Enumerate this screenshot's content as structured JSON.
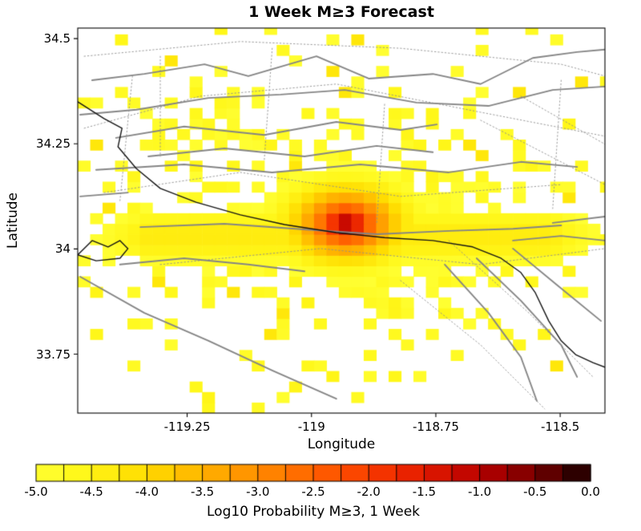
{
  "chart_data": {
    "type": "heatmap",
    "title": "1 Week M≥3 Forecast",
    "xlabel": "Longitude",
    "ylabel": "Latitude",
    "x_range": [
      -119.47,
      -118.41
    ],
    "y_range": [
      33.61,
      34.525
    ],
    "x_ticks": [
      -119.25,
      -119.0,
      -118.75,
      -118.5
    ],
    "x_tick_labels": [
      "-119.25",
      "-119",
      "-118.75",
      "-118.5"
    ],
    "y_ticks": [
      33.75,
      34.0,
      34.25,
      34.5
    ],
    "y_tick_labels": [
      "33.75",
      "34",
      "34.25",
      "34.5"
    ],
    "value_range": [
      -5.0,
      0.0
    ],
    "grid": {
      "cell_deg": 0.025
    },
    "hotspot": {
      "lon": -118.93,
      "lat": 34.06,
      "peak_log10_probability": -0.9
    },
    "colorbar": {
      "label": "Log10 Probability M≥3, 1 Week",
      "ticks": [
        -5.0,
        -4.5,
        -4.0,
        -3.5,
        -3.0,
        -2.5,
        -2.0,
        -1.5,
        -1.0,
        -0.5,
        0.0
      ],
      "tick_labels": [
        "-5.0",
        "-4.5",
        "-4.0",
        "-3.5",
        "-3.0",
        "-2.5",
        "-2.0",
        "-1.5",
        "-1.0",
        "-0.5",
        "0.0"
      ],
      "segments": 20,
      "stops": [
        [
          0.0,
          "#ffff33"
        ],
        [
          0.08,
          "#fff719"
        ],
        [
          0.2,
          "#ffdb00"
        ],
        [
          0.3,
          "#ffb300"
        ],
        [
          0.4,
          "#ff8c00"
        ],
        [
          0.5,
          "#ff6200"
        ],
        [
          0.6,
          "#fa3c00"
        ],
        [
          0.7,
          "#e31a00"
        ],
        [
          0.8,
          "#b80000"
        ],
        [
          0.9,
          "#780000"
        ],
        [
          1.0,
          "#140000"
        ]
      ]
    },
    "field_model": {
      "background_floor": -5.2,
      "core": {
        "lon": -118.93,
        "lat": 34.06,
        "amp1": 3.0,
        "sx1": 0.0125,
        "sy1": 0.0076,
        "amp2": 1.3,
        "sx2": 0.0011,
        "sy2": 0.0008
      },
      "ridge": {
        "lat": 34.03,
        "value": -4.35,
        "half_width_coef": 0.45,
        "width_scale": 0.055,
        "lon_min": -119.33,
        "lon_max": -118.52,
        "edge_falloff": 6
      },
      "scatter": {
        "base": 0.055,
        "amp": 0.62,
        "sx": 0.14,
        "sy": 0.05,
        "blob2": {
          "lon": -119.27,
          "lat": 34.3,
          "amp": 0.45,
          "sx": 0.0128,
          "sy": 0.0072
        },
        "value_min": -5.0,
        "value_spread": 0.45,
        "orange_chance": 0.05,
        "orange_value": -4.25
      },
      "seed": 20250
    },
    "overlays": {
      "fault_color": "#858585",
      "dotted_color": "#8f8f8f",
      "coast_color": "#141414",
      "faults_solid": [
        [
          [
            -119.441,
            34.401
          ],
          [
            -119.336,
            34.416
          ],
          [
            -119.215,
            34.439
          ],
          [
            -119.127,
            34.411
          ],
          [
            -118.99,
            34.458
          ],
          [
            -118.885,
            34.405
          ],
          [
            -118.756,
            34.416
          ],
          [
            -118.66,
            34.392
          ],
          [
            -118.555,
            34.454
          ],
          [
            -118.466,
            34.468
          ],
          [
            -118.41,
            34.474
          ]
        ],
        [
          [
            -119.465,
            34.319
          ],
          [
            -119.352,
            34.331
          ],
          [
            -119.207,
            34.359
          ],
          [
            -119.062,
            34.367
          ],
          [
            -118.933,
            34.378
          ],
          [
            -118.789,
            34.348
          ],
          [
            -118.644,
            34.34
          ],
          [
            -118.515,
            34.378
          ],
          [
            -118.41,
            34.386
          ]
        ],
        [
          [
            -119.393,
            34.264
          ],
          [
            -119.256,
            34.291
          ],
          [
            -119.095,
            34.271
          ],
          [
            -118.95,
            34.302
          ],
          [
            -118.821,
            34.283
          ],
          [
            -118.748,
            34.296
          ]
        ],
        [
          [
            -119.328,
            34.22
          ],
          [
            -119.175,
            34.239
          ],
          [
            -119.014,
            34.22
          ],
          [
            -118.869,
            34.245
          ],
          [
            -118.756,
            34.23
          ]
        ],
        [
          [
            -119.433,
            34.188
          ],
          [
            -119.256,
            34.201
          ],
          [
            -119.079,
            34.182
          ],
          [
            -118.902,
            34.201
          ],
          [
            -118.724,
            34.182
          ],
          [
            -118.579,
            34.207
          ],
          [
            -118.466,
            34.195
          ]
        ],
        [
          [
            -119.344,
            34.052
          ],
          [
            -119.175,
            34.06
          ],
          [
            -118.998,
            34.045
          ],
          [
            -118.869,
            34.035
          ],
          [
            -118.724,
            34.043
          ],
          [
            -118.595,
            34.048
          ],
          [
            -118.498,
            34.056
          ]
        ],
        [
          [
            -119.385,
            33.963
          ],
          [
            -119.256,
            33.978
          ],
          [
            -119.127,
            33.963
          ],
          [
            -119.014,
            33.947
          ]
        ],
        [
          [
            -119.465,
            33.934
          ],
          [
            -119.336,
            33.848
          ],
          [
            -119.207,
            33.782
          ],
          [
            -119.078,
            33.711
          ],
          [
            -118.95,
            33.644
          ]
        ],
        [
          [
            -118.732,
            33.963
          ],
          [
            -118.644,
            33.848
          ],
          [
            -118.579,
            33.743
          ],
          [
            -118.547,
            33.639
          ]
        ],
        [
          [
            -118.668,
            33.978
          ],
          [
            -118.579,
            33.877
          ],
          [
            -118.498,
            33.772
          ],
          [
            -118.466,
            33.696
          ]
        ],
        [
          [
            -118.595,
            34.001
          ],
          [
            -118.507,
            33.915
          ],
          [
            -118.418,
            33.829
          ]
        ],
        [
          [
            -118.595,
            34.02
          ],
          [
            -118.498,
            34.031
          ],
          [
            -118.41,
            34.02
          ]
        ],
        [
          [
            -118.515,
            34.062
          ],
          [
            -118.41,
            34.077
          ]
        ],
        [
          [
            -119.465,
            34.125
          ],
          [
            -119.369,
            34.134
          ]
        ]
      ],
      "faults_dotted": [
        [
          [
            -119.457,
            34.458
          ],
          [
            -119.143,
            34.493
          ],
          [
            -118.821,
            34.477
          ],
          [
            -118.498,
            34.439
          ],
          [
            -118.41,
            34.411
          ]
        ],
        [
          [
            -119.457,
            34.287
          ],
          [
            -119.224,
            34.363
          ],
          [
            -118.95,
            34.392
          ],
          [
            -118.66,
            34.325
          ],
          [
            -118.41,
            34.268
          ]
        ],
        [
          [
            -119.417,
            34.134
          ],
          [
            -119.143,
            34.182
          ],
          [
            -118.821,
            34.125
          ],
          [
            -118.498,
            34.153
          ]
        ],
        [
          [
            -119.304,
            33.963
          ],
          [
            -118.982,
            34.001
          ],
          [
            -118.66,
            33.963
          ],
          [
            -118.41,
            34.001
          ]
        ],
        [
          [
            -118.821,
            33.925
          ],
          [
            -118.66,
            33.772
          ],
          [
            -118.531,
            33.62
          ]
        ],
        [
          [
            -118.724,
            34.02
          ],
          [
            -118.563,
            33.848
          ],
          [
            -118.434,
            33.696
          ]
        ],
        [
          [
            -118.66,
            34.306
          ],
          [
            -118.41,
            34.153
          ]
        ],
        [
          [
            -118.579,
            34.363
          ],
          [
            -118.41,
            34.249
          ]
        ],
        [
          [
            -119.36,
            34.411
          ],
          [
            -119.385,
            34.115
          ]
        ],
        [
          [
            -119.079,
            34.477
          ],
          [
            -119.095,
            34.21
          ]
        ],
        [
          [
            -118.853,
            34.344
          ],
          [
            -118.869,
            34.058
          ]
        ],
        [
          [
            -118.498,
            34.401
          ],
          [
            -118.515,
            34.096
          ]
        ],
        [
          [
            -119.304,
            34.458
          ],
          [
            -119.304,
            34.22
          ]
        ]
      ],
      "coastline": [
        [
          [
            -119.47,
            34.35
          ],
          [
            -119.417,
            34.31
          ],
          [
            -119.381,
            34.287
          ],
          [
            -119.389,
            34.243
          ],
          [
            -119.352,
            34.191
          ],
          [
            -119.304,
            34.144
          ],
          [
            -119.232,
            34.111
          ],
          [
            -119.143,
            34.081
          ],
          [
            -119.054,
            34.058
          ],
          [
            -118.95,
            34.039
          ],
          [
            -118.853,
            34.027
          ],
          [
            -118.756,
            34.02
          ],
          [
            -118.676,
            34.005
          ],
          [
            -118.619,
            33.978
          ],
          [
            -118.579,
            33.944
          ],
          [
            -118.55,
            33.896
          ],
          [
            -118.523,
            33.829
          ],
          [
            -118.498,
            33.782
          ],
          [
            -118.469,
            33.749
          ],
          [
            -118.434,
            33.73
          ],
          [
            -118.41,
            33.719
          ]
        ],
        [
          [
            -119.47,
            33.986
          ],
          [
            -119.441,
            34.02
          ],
          [
            -119.409,
            34.005
          ],
          [
            -119.385,
            34.02
          ],
          [
            -119.369,
            34.001
          ],
          [
            -119.385,
            33.978
          ],
          [
            -119.433,
            33.972
          ],
          [
            -119.47,
            33.986
          ]
        ]
      ]
    }
  }
}
